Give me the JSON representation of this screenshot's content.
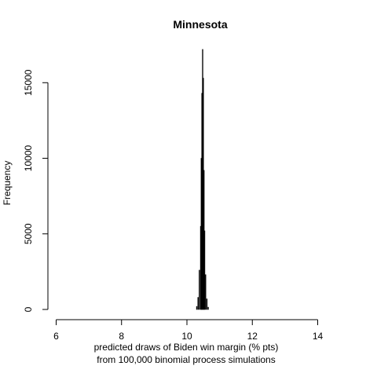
{
  "chart_data": {
    "type": "bar",
    "title": "Minnesota",
    "xlabel_line1": "predicted draws of Biden win margin (% pts)",
    "xlabel_line2": "from 100,000 binomial process simulations",
    "ylabel": "Frequency",
    "xlim": [
      5.7,
      14.3
    ],
    "ylim": [
      0,
      17300
    ],
    "x_ticks": [
      6,
      8,
      10,
      12,
      14
    ],
    "y_ticks": [
      0,
      5000,
      10000,
      15000
    ],
    "grid": false,
    "bars": [
      {
        "x": 10.3,
        "value": 200
      },
      {
        "x": 10.34,
        "value": 800
      },
      {
        "x": 10.38,
        "value": 2600
      },
      {
        "x": 10.42,
        "value": 5500
      },
      {
        "x": 10.44,
        "value": 10000
      },
      {
        "x": 10.46,
        "value": 14300
      },
      {
        "x": 10.48,
        "value": 17200
      },
      {
        "x": 10.5,
        "value": 15300
      },
      {
        "x": 10.52,
        "value": 9200
      },
      {
        "x": 10.54,
        "value": 5200
      },
      {
        "x": 10.57,
        "value": 2300
      },
      {
        "x": 10.61,
        "value": 700
      },
      {
        "x": 10.65,
        "value": 150
      }
    ],
    "bar_width": 0.018
  }
}
